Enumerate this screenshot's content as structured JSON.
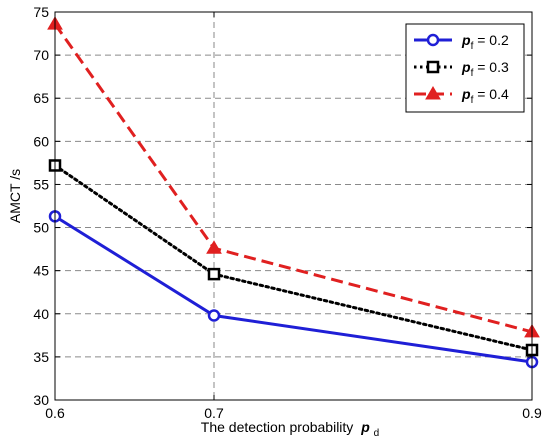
{
  "chart_data": {
    "type": "line",
    "title": "",
    "xlabel": "The detection probability",
    "xlabel_symbol": "p",
    "xlabel_subscript": "d",
    "ylabel": "AMCT /s",
    "x": [
      0.6,
      0.7,
      0.9
    ],
    "x_ticks": [
      "0.6",
      "0.7",
      "0.9"
    ],
    "xlim": [
      0.6,
      0.9
    ],
    "ylim": [
      30,
      75
    ],
    "y_ticks": [
      "30",
      "35",
      "40",
      "45",
      "50",
      "55",
      "60",
      "65",
      "70",
      "75"
    ],
    "grid": true,
    "legend_position": "top-right",
    "series": [
      {
        "name_symbol": "p",
        "name_subscript": "f",
        "name_value": " = 0.2",
        "values": [
          51.3,
          39.8,
          34.4
        ],
        "color": "#1f1fd6",
        "style": "solid",
        "marker": "circle"
      },
      {
        "name_symbol": "p",
        "name_subscript": "f",
        "name_value": " = 0.3",
        "values": [
          57.2,
          44.6,
          35.8
        ],
        "color": "#000000",
        "style": "dotted",
        "marker": "square"
      },
      {
        "name_symbol": "p",
        "name_subscript": "f",
        "name_value": " = 0.4",
        "values": [
          73.6,
          47.6,
          37.9
        ],
        "color": "#e02020",
        "style": "dashed",
        "marker": "triangle"
      }
    ]
  }
}
